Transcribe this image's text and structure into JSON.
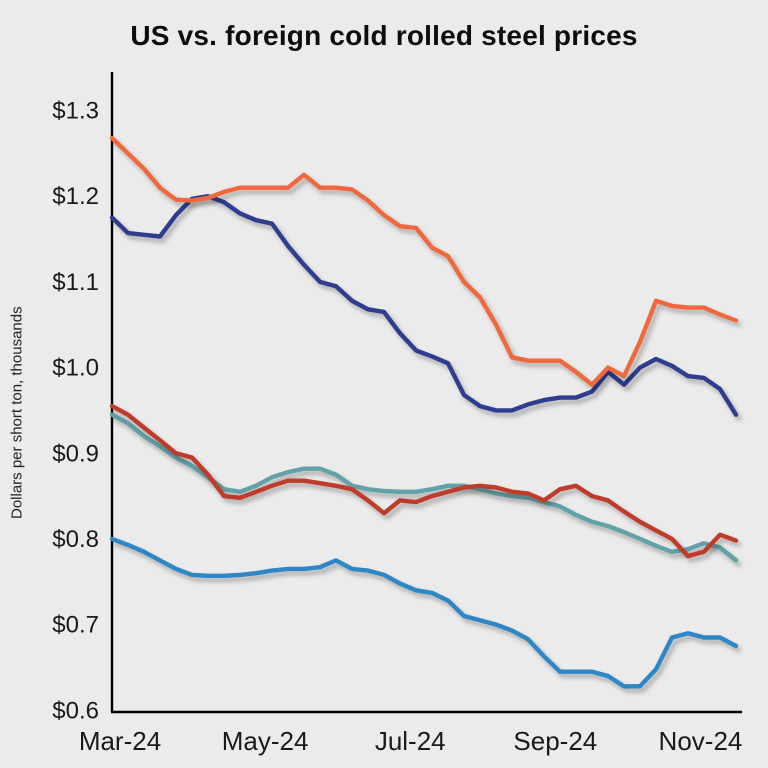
{
  "page": {
    "background": "#ebebeb",
    "axis_color": "#000000",
    "tick_text_color": "#1a1a1a"
  },
  "chart_data": {
    "type": "line",
    "title": "US vs. foreign cold rolled steel prices",
    "ylabel": "Dollars per short ton, thousands",
    "xlabel": "",
    "grid": false,
    "legend": "none",
    "x_tick_labels": [
      "Mar-24",
      "May-24",
      "Jul-24",
      "Sep-24",
      "Nov-24"
    ],
    "x_tick_positions": [
      0,
      2,
      4,
      6,
      8
    ],
    "x_range": [
      0,
      8.6
    ],
    "y_ticks": [
      0.6,
      0.7,
      0.8,
      0.9,
      1.0,
      1.1,
      1.2,
      1.3
    ],
    "y_tick_labels": [
      "$0.6",
      "$0.7",
      "$0.8",
      "$0.9",
      "$1.0",
      "$1.1",
      "$1.2",
      "$1.3"
    ],
    "ylim": [
      0.598,
      1.345
    ],
    "series": [
      {
        "name": "teal",
        "color": "#62a1a8",
        "values": [
          0.945,
          0.935,
          0.92,
          0.908,
          0.895,
          0.885,
          0.872,
          0.858,
          0.855,
          0.862,
          0.872,
          0.878,
          0.882,
          0.882,
          0.875,
          0.862,
          0.858,
          0.856,
          0.855,
          0.855,
          0.858,
          0.862,
          0.862,
          0.858,
          0.853,
          0.85,
          0.848,
          0.843,
          0.838,
          0.828,
          0.82,
          0.815,
          0.808,
          0.8,
          0.792,
          0.785,
          0.788,
          0.795,
          0.79,
          0.775
        ]
      },
      {
        "name": "dark-red",
        "color": "#bf3a2b",
        "values": [
          0.955,
          0.945,
          0.93,
          0.915,
          0.9,
          0.895,
          0.875,
          0.85,
          0.848,
          0.855,
          0.862,
          0.868,
          0.868,
          0.865,
          0.862,
          0.858,
          0.845,
          0.83,
          0.845,
          0.843,
          0.85,
          0.855,
          0.86,
          0.862,
          0.86,
          0.855,
          0.853,
          0.845,
          0.858,
          0.862,
          0.85,
          0.845,
          0.832,
          0.82,
          0.81,
          0.8,
          0.78,
          0.785,
          0.805,
          0.798
        ]
      },
      {
        "name": "light-blue",
        "color": "#2e86c5",
        "values": [
          0.8,
          0.793,
          0.785,
          0.775,
          0.765,
          0.758,
          0.757,
          0.757,
          0.758,
          0.76,
          0.763,
          0.765,
          0.765,
          0.767,
          0.775,
          0.765,
          0.763,
          0.758,
          0.748,
          0.74,
          0.737,
          0.728,
          0.71,
          0.705,
          0.7,
          0.693,
          0.683,
          0.663,
          0.645,
          0.645,
          0.645,
          0.64,
          0.628,
          0.628,
          0.648,
          0.685,
          0.69,
          0.685,
          0.685,
          0.675
        ]
      },
      {
        "name": "navy",
        "color": "#2e3c8e",
        "values": [
          1.175,
          1.157,
          1.155,
          1.153,
          1.178,
          1.197,
          1.2,
          1.193,
          1.18,
          1.172,
          1.168,
          1.142,
          1.12,
          1.1,
          1.095,
          1.078,
          1.068,
          1.065,
          1.04,
          1.02,
          1.013,
          1.005,
          0.968,
          0.955,
          0.95,
          0.95,
          0.957,
          0.962,
          0.965,
          0.965,
          0.972,
          0.995,
          0.98,
          1.0,
          1.01,
          1.002,
          0.99,
          0.988,
          0.975,
          0.945
        ]
      },
      {
        "name": "orange",
        "color": "#f0683c",
        "values": [
          1.268,
          1.25,
          1.232,
          1.21,
          1.196,
          1.195,
          1.198,
          1.205,
          1.21,
          1.21,
          1.21,
          1.21,
          1.225,
          1.21,
          1.21,
          1.208,
          1.195,
          1.178,
          1.165,
          1.163,
          1.14,
          1.13,
          1.1,
          1.082,
          1.05,
          1.012,
          1.008,
          1.008,
          1.008,
          0.995,
          0.98,
          1.0,
          0.99,
          1.03,
          1.078,
          1.072,
          1.07,
          1.07,
          1.062,
          1.055
        ]
      }
    ]
  }
}
